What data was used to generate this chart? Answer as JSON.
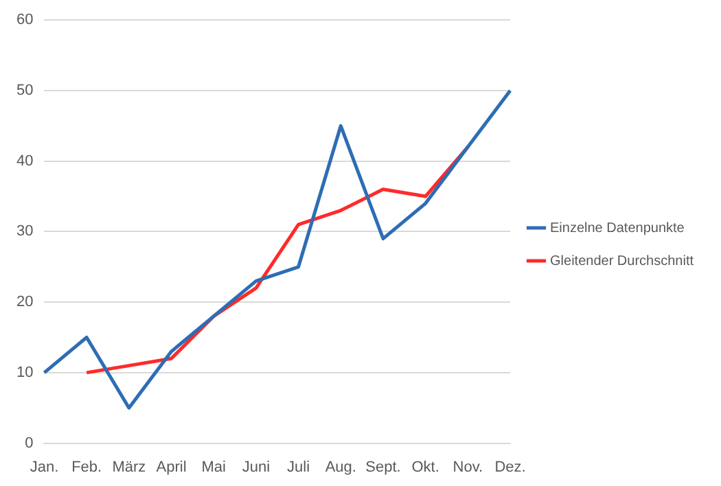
{
  "chart_data": {
    "type": "line",
    "categories": [
      "Jan.",
      "Feb.",
      "März",
      "April",
      "Mai",
      "Juni",
      "Juli",
      "Aug.",
      "Sept.",
      "Okt.",
      "Nov.",
      "Dez."
    ],
    "series": [
      {
        "name": "Einzelne Datenpunkte",
        "color": "#2e6db4",
        "values": [
          10,
          15,
          5,
          13,
          18,
          23,
          25,
          45,
          29,
          34,
          42,
          50
        ]
      },
      {
        "name": "Gleitender Durchschnitt",
        "color": "#ff2a2a",
        "values": [
          null,
          10,
          11,
          12,
          18,
          22,
          31,
          33,
          36,
          35,
          42,
          null
        ]
      }
    ],
    "ylim": [
      0,
      60
    ],
    "yticks": [
      0,
      10,
      20,
      30,
      40,
      50,
      60
    ],
    "grid": "y",
    "legend": "right",
    "marker": "none",
    "line_style": "solid"
  }
}
